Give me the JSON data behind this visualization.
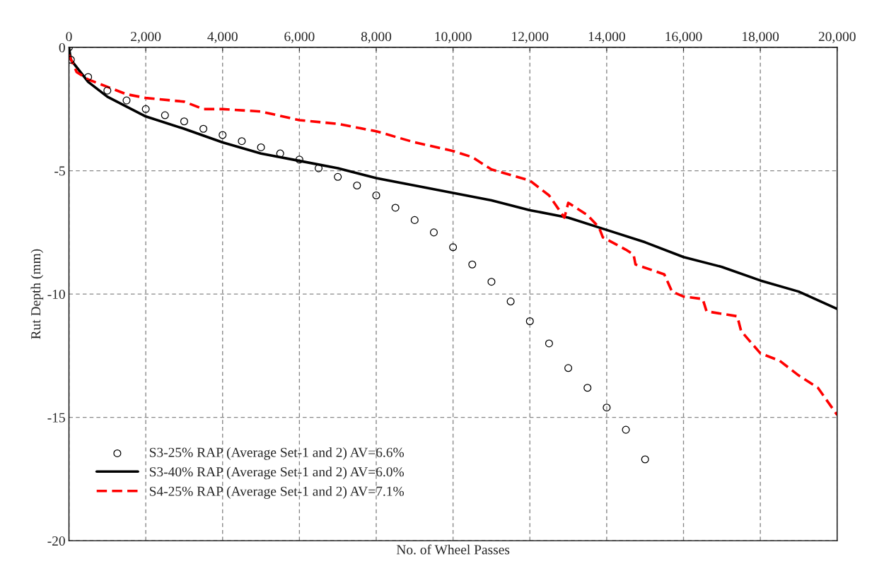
{
  "chart_data": {
    "type": "line",
    "xlabel": "No. of Wheel Passes",
    "ylabel": "Rut Depth (mm)",
    "xlim": [
      0,
      20000
    ],
    "ylim": [
      -20,
      0
    ],
    "xticks": [
      0,
      {
        "value": 2000,
        "label": "2,000"
      },
      {
        "value": 4000,
        "label": "4,000"
      },
      {
        "value": 6000,
        "label": "6,000"
      },
      {
        "value": 8000,
        "label": "8,000"
      },
      {
        "value": 10000,
        "label": "10,000"
      },
      {
        "value": 12000,
        "label": "12,000"
      },
      {
        "value": 14000,
        "label": "14,000"
      },
      {
        "value": 16000,
        "label": "16,000"
      },
      {
        "value": 18000,
        "label": "18,000"
      },
      {
        "value": 20000,
        "label": "20,000"
      }
    ],
    "yticks": [
      -20,
      -15,
      -10,
      -5,
      0
    ],
    "grid": true,
    "legend": "bottom left",
    "series": [
      {
        "name": "S3-25% RAP (Average Set-1 and 2) AV=6.6%",
        "type": "scatter",
        "marker": "circle",
        "color": "#000000",
        "x": [
          0,
          50,
          500,
          1000,
          1500,
          2000,
          2500,
          3000,
          3500,
          4000,
          4500,
          5000,
          5500,
          6000,
          6500,
          7000,
          7500,
          8000,
          8500,
          9000,
          9500,
          10000,
          10500,
          11000,
          11500,
          12000,
          12500,
          13000,
          13500,
          14000,
          14500,
          15000
        ],
        "values": [
          0,
          -0.5,
          -1.2,
          -1.75,
          -2.15,
          -2.5,
          -2.75,
          -3.0,
          -3.3,
          -3.55,
          -3.8,
          -4.05,
          -4.3,
          -4.55,
          -4.9,
          -5.25,
          -5.6,
          -6.0,
          -6.5,
          -7.0,
          -7.5,
          -8.1,
          -8.8,
          -9.5,
          -10.3,
          -11.1,
          -12.0,
          -13.0,
          -13.8,
          -14.6,
          -15.5,
          -16.7
        ]
      },
      {
        "name": "S3-40% RAP (Average Set-1 and 2) AV=6.0%",
        "line_style": "solid",
        "color": "#000000",
        "x": [
          0,
          50,
          500,
          1000,
          2000,
          3000,
          4000,
          5000,
          6000,
          7000,
          8000,
          9000,
          10000,
          11000,
          12000,
          13000,
          14000,
          15000,
          16000,
          17000,
          18000,
          19000,
          20000
        ],
        "values": [
          0,
          -0.5,
          -1.4,
          -2.0,
          -2.8,
          -3.3,
          -3.85,
          -4.3,
          -4.6,
          -4.9,
          -5.3,
          -5.6,
          -5.9,
          -6.2,
          -6.6,
          -6.9,
          -7.4,
          -7.9,
          -8.5,
          -8.9,
          -9.45,
          -9.9,
          -10.6
        ]
      },
      {
        "name": "S4-25% RAP (Average Set-1 and 2) AV=7.1%",
        "line_style": "dashed",
        "color": "#ff0000",
        "x": [
          0,
          200,
          500,
          1000,
          1500,
          2000,
          3000,
          3500,
          4000,
          5000,
          6000,
          7000,
          8000,
          9000,
          10000,
          10500,
          11000,
          12000,
          12500,
          12900,
          13000,
          13500,
          13800,
          13900,
          14500,
          14700,
          14750,
          15500,
          15700,
          16000,
          16500,
          16600,
          17400,
          17500,
          18000,
          18500,
          19000,
          19500,
          20000
        ],
        "values": [
          -0.3,
          -1.0,
          -1.3,
          -1.6,
          -1.9,
          -2.05,
          -2.2,
          -2.5,
          -2.5,
          -2.6,
          -2.95,
          -3.1,
          -3.4,
          -3.85,
          -4.2,
          -4.45,
          -4.95,
          -5.4,
          -6.0,
          -6.9,
          -6.3,
          -6.8,
          -7.3,
          -7.7,
          -8.2,
          -8.4,
          -8.8,
          -9.2,
          -9.9,
          -10.1,
          -10.2,
          -10.7,
          -10.9,
          -11.5,
          -12.4,
          -12.7,
          -13.3,
          -13.8,
          -14.9
        ]
      }
    ]
  }
}
